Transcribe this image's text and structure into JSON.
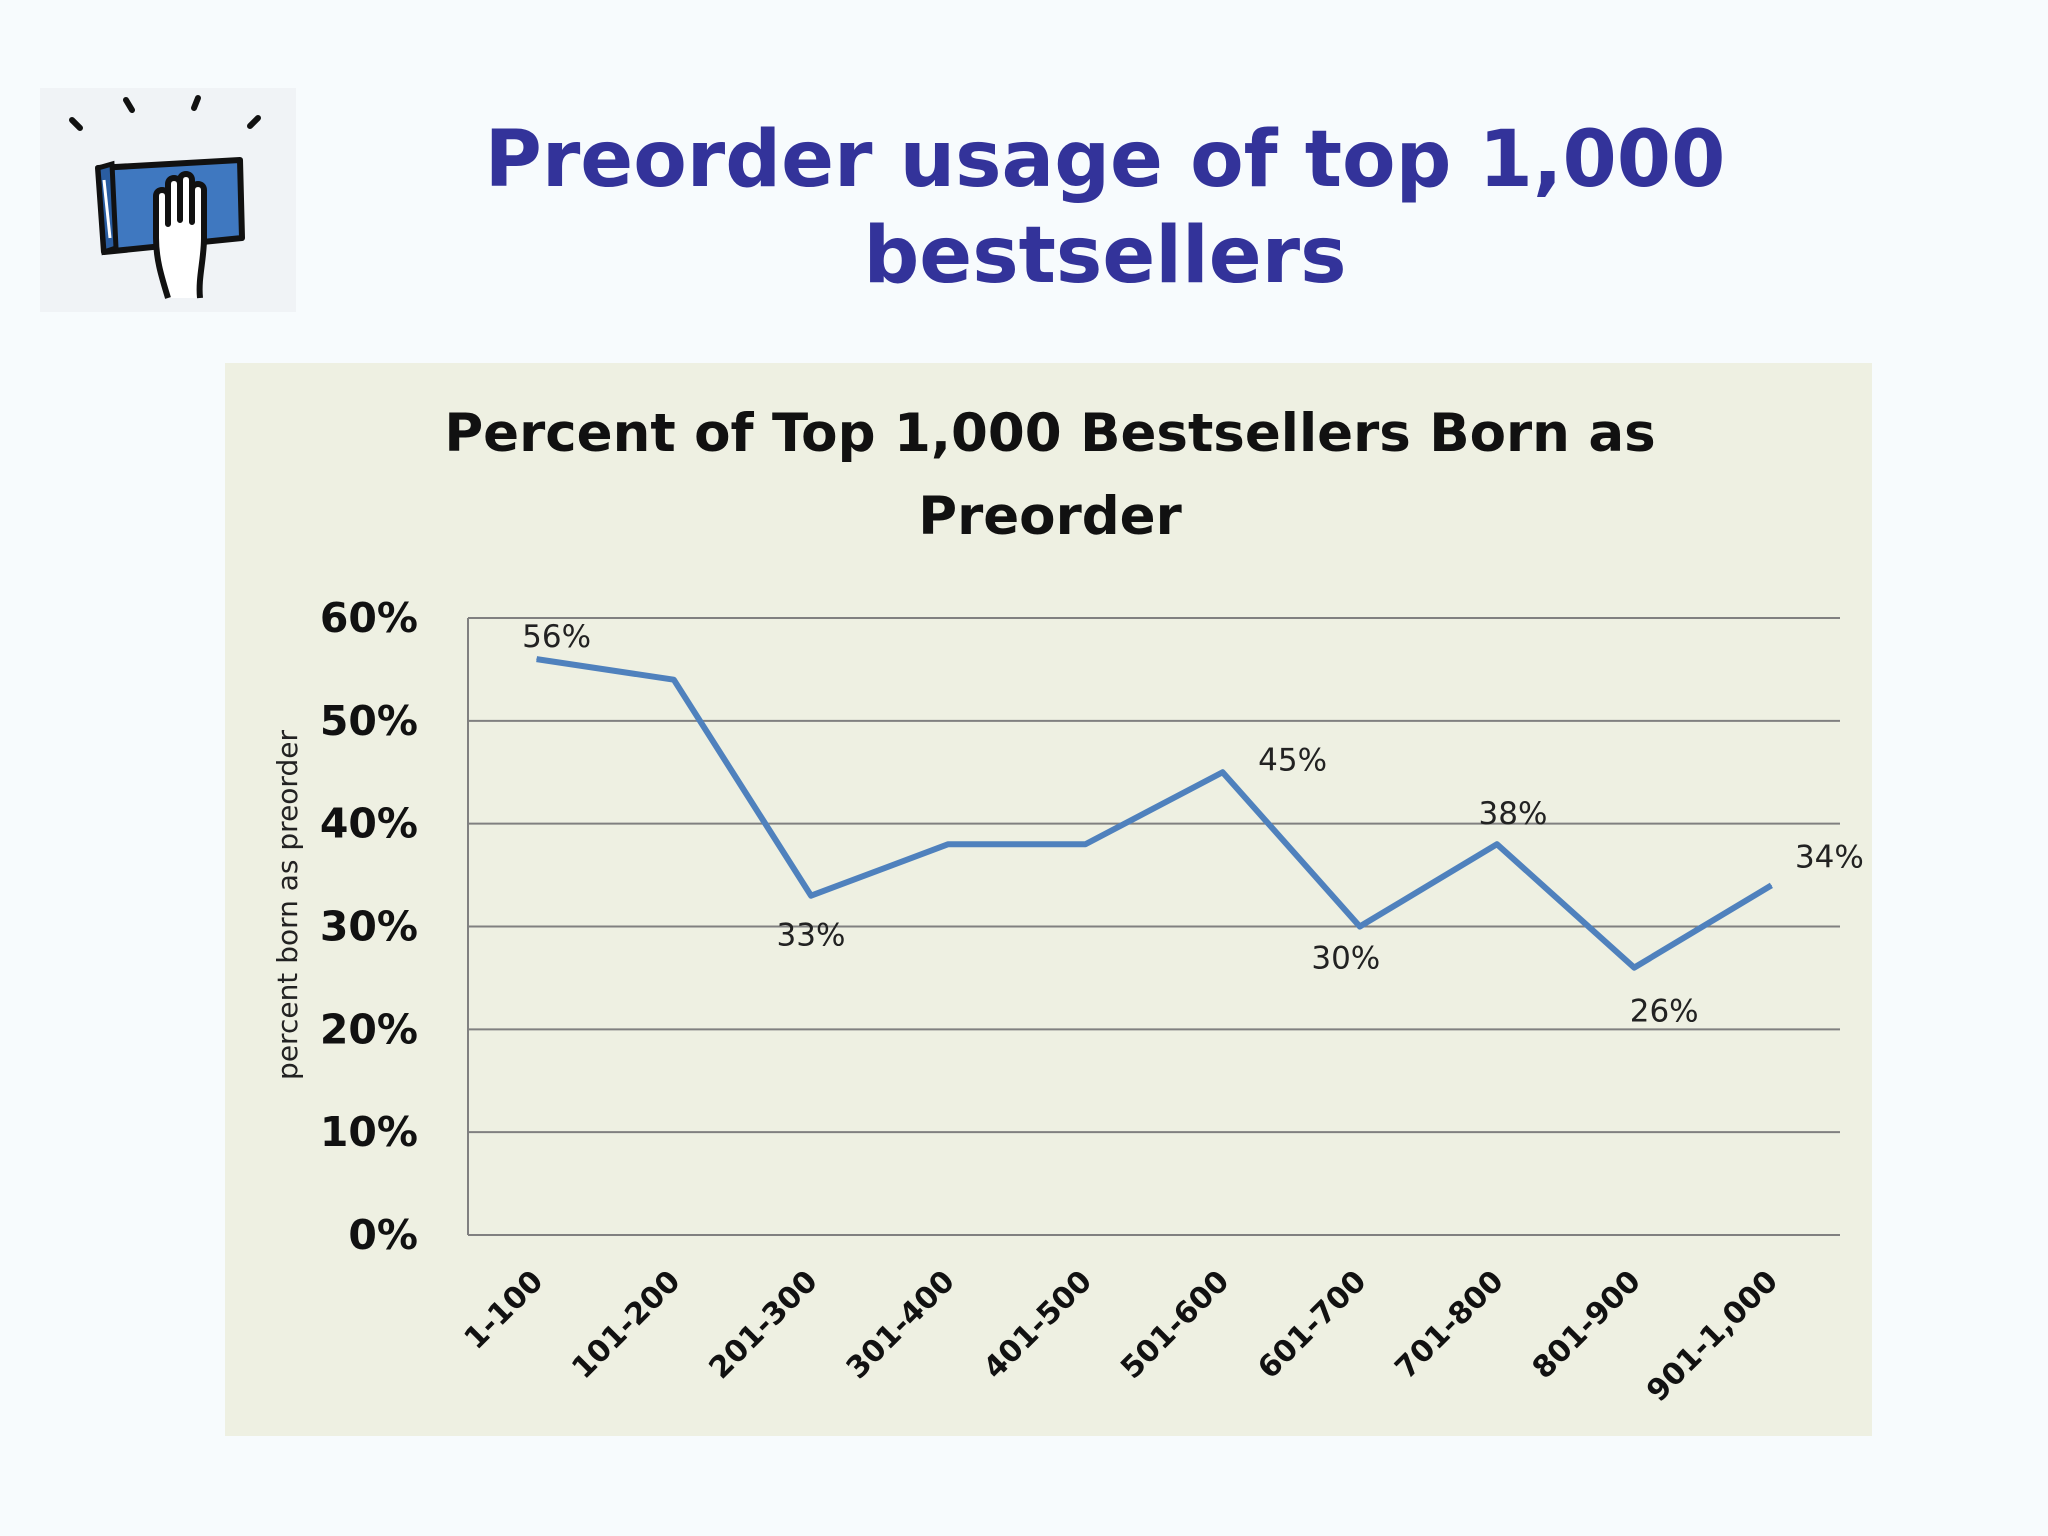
{
  "slide": {
    "title": "Preorder usage of top 1,000 bestsellers",
    "logo_icon": "book-with-raised-hand-icon"
  },
  "colors": {
    "title": "#33339a",
    "line": "#4f81bd",
    "panel": "#eef0e2",
    "grid": "#808080"
  },
  "chart_data": {
    "type": "line",
    "title": "Percent of Top 1,000 Bestsellers Born as Preorder",
    "xlabel": "",
    "ylabel": "percent born as preorder",
    "categories": [
      "1-100",
      "101-200",
      "201-300",
      "301-400",
      "401-500",
      "501-600",
      "601-700",
      "701-800",
      "801-900",
      "901-1,000"
    ],
    "series": [
      {
        "values": [
          56,
          54,
          33,
          38,
          38,
          45,
          30,
          38,
          26,
          34
        ]
      }
    ],
    "data_labels": [
      "56%",
      "",
      "33%",
      "",
      "",
      "45%",
      "30%",
      "38%",
      "26%",
      "34%"
    ],
    "yticks": [
      "0%",
      "10%",
      "20%",
      "30%",
      "40%",
      "50%",
      "60%"
    ],
    "ylim": [
      0,
      60
    ],
    "grid": true,
    "legend": "none"
  }
}
